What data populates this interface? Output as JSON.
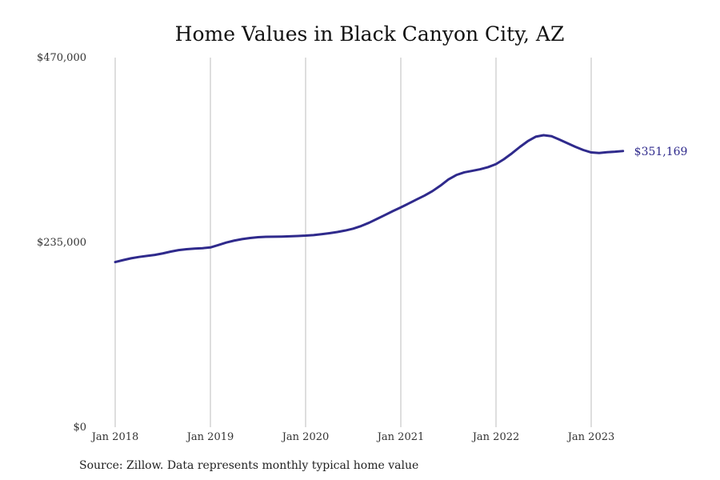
{
  "chart_data": {
    "type": "line",
    "title": "Home Values in Black Canyon City, AZ",
    "ylim": [
      0,
      470000
    ],
    "y_ticks": [
      {
        "value": 0,
        "label": "$0"
      },
      {
        "value": 235000,
        "label": "$235,000"
      },
      {
        "value": 470000,
        "label": "$470,000"
      }
    ],
    "x_ticks": [
      {
        "value": "2018-01",
        "label": "Jan 2018"
      },
      {
        "value": "2019-01",
        "label": "Jan 2019"
      },
      {
        "value": "2020-01",
        "label": "Jan 2020"
      },
      {
        "value": "2021-01",
        "label": "Jan 2021"
      },
      {
        "value": "2022-01",
        "label": "Jan 2022"
      },
      {
        "value": "2023-01",
        "label": "Jan 2023"
      }
    ],
    "grid": "vertical",
    "series": [
      {
        "color": "#2f2a8c",
        "end_label": "$351,169",
        "x": [
          "2018-01",
          "2018-02",
          "2018-03",
          "2018-04",
          "2018-05",
          "2018-06",
          "2018-07",
          "2018-08",
          "2018-09",
          "2018-10",
          "2018-11",
          "2018-12",
          "2019-01",
          "2019-02",
          "2019-03",
          "2019-04",
          "2019-05",
          "2019-06",
          "2019-07",
          "2019-08",
          "2019-09",
          "2019-10",
          "2019-11",
          "2019-12",
          "2020-01",
          "2020-02",
          "2020-03",
          "2020-04",
          "2020-05",
          "2020-06",
          "2020-07",
          "2020-08",
          "2020-09",
          "2020-10",
          "2020-11",
          "2020-12",
          "2021-01",
          "2021-02",
          "2021-03",
          "2021-04",
          "2021-05",
          "2021-06",
          "2021-07",
          "2021-08",
          "2021-09",
          "2021-10",
          "2021-11",
          "2021-12",
          "2022-01",
          "2022-02",
          "2022-03",
          "2022-04",
          "2022-05",
          "2022-06",
          "2022-07",
          "2022-08",
          "2022-09",
          "2022-10",
          "2022-11",
          "2022-12",
          "2023-01",
          "2023-02",
          "2023-03",
          "2023-04",
          "2023-05"
        ],
        "values": [
          210000,
          212500,
          214800,
          216500,
          217800,
          219100,
          221000,
          223300,
          225200,
          226400,
          227100,
          227600,
          228600,
          231600,
          234800,
          237300,
          239200,
          240600,
          241600,
          242100,
          242300,
          242400,
          242700,
          243200,
          243600,
          244300,
          245400,
          246700,
          248200,
          250100,
          252500,
          255800,
          260000,
          264900,
          269800,
          274800,
          279500,
          284500,
          289600,
          294600,
          300300,
          307200,
          315000,
          320700,
          324100,
          326000,
          328000,
          330700,
          334600,
          340800,
          348200,
          356300,
          363700,
          369400,
          371300,
          370000,
          365700,
          361100,
          356600,
          352500,
          349400,
          348700,
          349700,
          350300,
          351169
        ]
      }
    ]
  },
  "source_note": "Source: Zillow. Data represents monthly typical home value"
}
